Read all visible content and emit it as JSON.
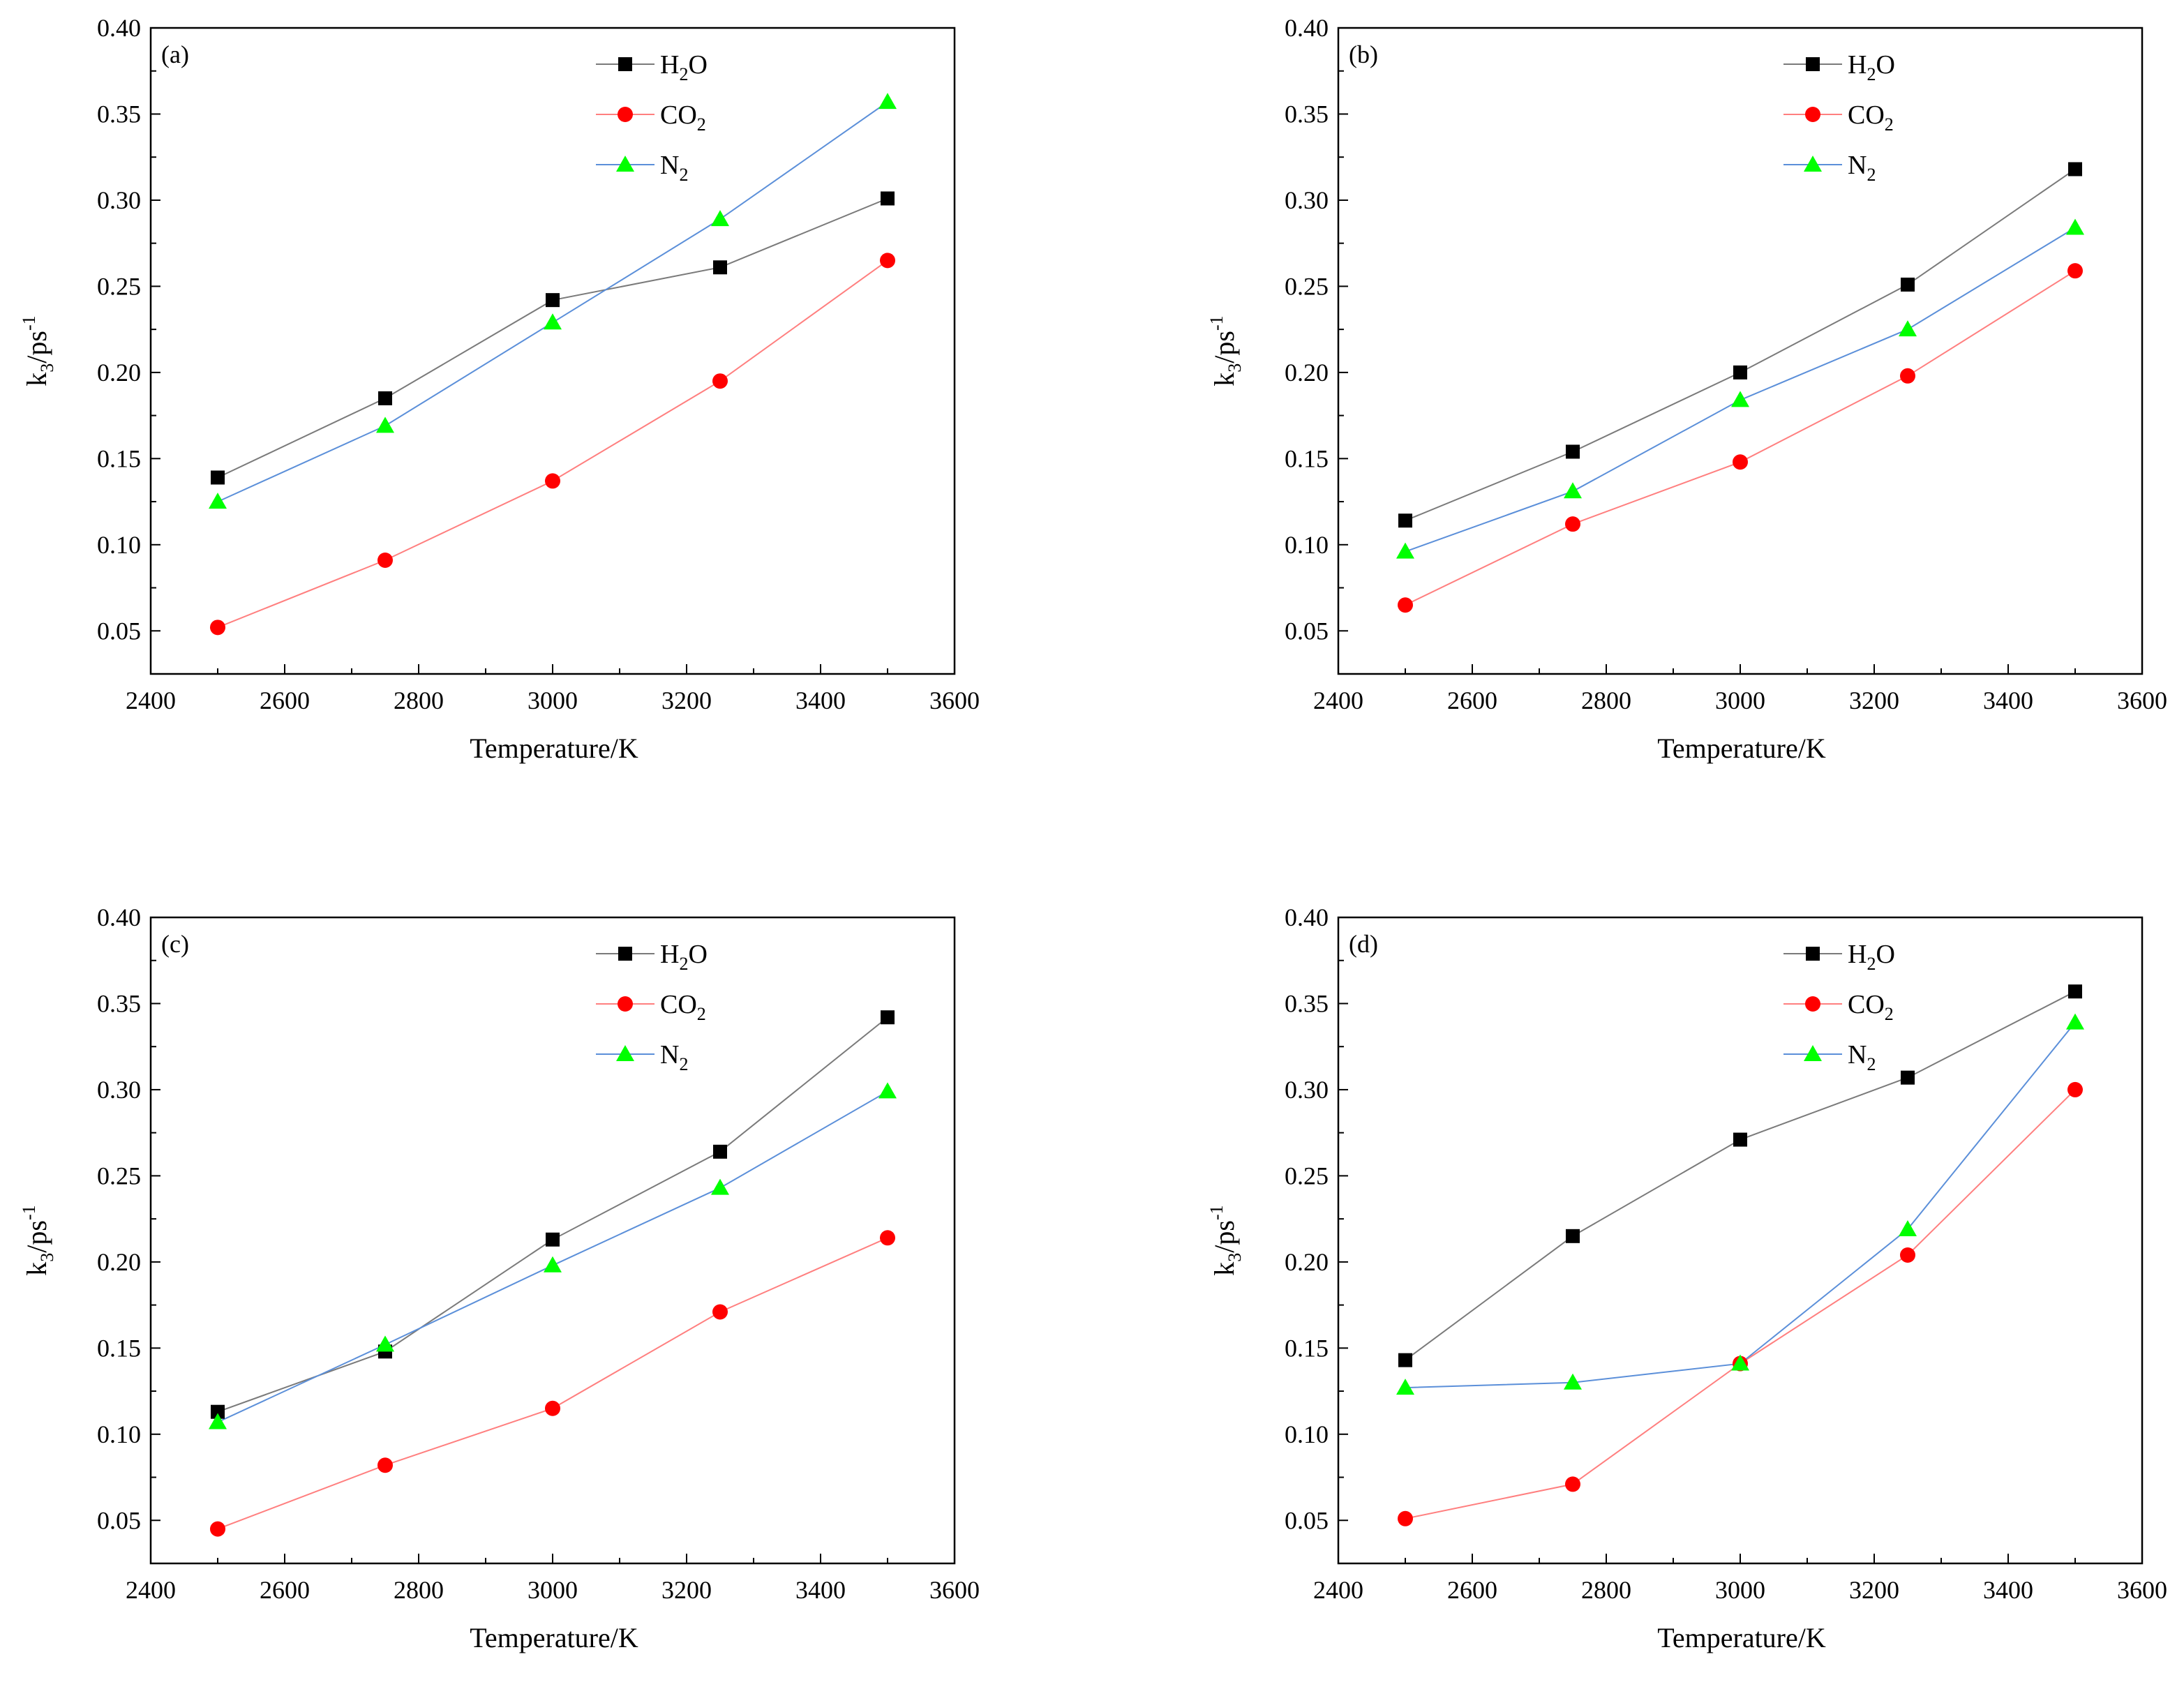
{
  "colors": {
    "h2o": "#000000",
    "h2o_line": "#7a7a7a",
    "co2": "#ff0000",
    "co2_line": "#ff7f7f",
    "n2": "#00ff00",
    "n2_line": "#5b8fd9"
  },
  "legend": [
    {
      "key": "h2o",
      "base": "H",
      "sub": "2",
      "tail": "O",
      "marker": "square"
    },
    {
      "key": "co2",
      "base": "CO",
      "sub": "2",
      "tail": "",
      "marker": "circle"
    },
    {
      "key": "n2",
      "base": "N",
      "sub": "2",
      "tail": "",
      "marker": "triangle"
    }
  ],
  "chart_data": [
    {
      "panel": "(a)",
      "type": "line",
      "x": [
        2500,
        2750,
        3000,
        3250,
        3500
      ],
      "xlabel": "Temperature/K",
      "ylabel": {
        "base": "k",
        "sub": "3",
        "mid": "/ps",
        "sup": "-1"
      },
      "xlim": [
        2400,
        3600
      ],
      "ylim": [
        0.025,
        0.4
      ],
      "xticks": [
        2400,
        2600,
        2800,
        3000,
        3200,
        3400,
        3600
      ],
      "xtick_labels": [
        "2400",
        "2600",
        "2800",
        "3000",
        "3200",
        "3400",
        "3600"
      ],
      "yticks": [
        0.05,
        0.1,
        0.15,
        0.2,
        0.25,
        0.3,
        0.35,
        0.4
      ],
      "ytick_labels": [
        "0.05",
        "0.10",
        "0.15",
        "0.20",
        "0.25",
        "0.30",
        "0.35",
        "0.40"
      ],
      "legend_position": "top-center",
      "series": [
        {
          "name": "H2O",
          "key": "h2o",
          "values": [
            0.139,
            0.185,
            0.242,
            0.261,
            0.301
          ]
        },
        {
          "name": "CO2",
          "key": "co2",
          "values": [
            0.052,
            0.091,
            0.137,
            0.195,
            0.265
          ]
        },
        {
          "name": "N2",
          "key": "n2",
          "values": [
            0.125,
            0.169,
            0.229,
            0.289,
            0.357
          ]
        }
      ]
    },
    {
      "panel": "(b)",
      "type": "line",
      "x": [
        2500,
        2750,
        3000,
        3250,
        3500
      ],
      "xlabel": "Temperature/K",
      "ylabel": {
        "base": "k",
        "sub": "3",
        "mid": "/ps",
        "sup": "-1"
      },
      "xlim": [
        2400,
        3600
      ],
      "ylim": [
        0.025,
        0.4
      ],
      "xticks": [
        2400,
        2600,
        2800,
        3000,
        3200,
        3400,
        3600
      ],
      "xtick_labels": [
        "2400",
        "2600",
        "2800",
        "3000",
        "3200",
        "3400",
        "3600"
      ],
      "yticks": [
        0.05,
        0.1,
        0.15,
        0.2,
        0.25,
        0.3,
        0.35,
        0.4
      ],
      "ytick_labels": [
        "0.05",
        "0.10",
        "0.15",
        "0.20",
        "0.25",
        "0.30",
        "0.35",
        "0.40"
      ],
      "legend_position": "top-center",
      "series": [
        {
          "name": "H2O",
          "key": "h2o",
          "values": [
            0.114,
            0.154,
            0.2,
            0.251,
            0.318
          ]
        },
        {
          "name": "CO2",
          "key": "co2",
          "values": [
            0.065,
            0.112,
            0.148,
            0.198,
            0.259
          ]
        },
        {
          "name": "N2",
          "key": "n2",
          "values": [
            0.096,
            0.131,
            0.184,
            0.225,
            0.284
          ]
        }
      ]
    },
    {
      "panel": "(c)",
      "type": "line",
      "x": [
        2500,
        2750,
        3000,
        3250,
        3500
      ],
      "xlabel": "Temperature/K",
      "ylabel": {
        "base": "k",
        "sub": "3",
        "mid": "/ps",
        "sup": "-1"
      },
      "xlim": [
        2400,
        3600
      ],
      "ylim": [
        0.025,
        0.4
      ],
      "xticks": [
        2400,
        2600,
        2800,
        3000,
        3200,
        3400,
        3600
      ],
      "xtick_labels": [
        "2400",
        "2600",
        "2800",
        "3000",
        "3200",
        "3400",
        "3600"
      ],
      "yticks": [
        0.05,
        0.1,
        0.15,
        0.2,
        0.25,
        0.3,
        0.35,
        0.4
      ],
      "ytick_labels": [
        "0.05",
        "0.10",
        "0.15",
        "0.20",
        "0.25",
        "0.30",
        "0.35",
        "0.40"
      ],
      "legend_position": "top-center",
      "series": [
        {
          "name": "H2O",
          "key": "h2o",
          "values": [
            0.113,
            0.148,
            0.213,
            0.264,
            0.342
          ]
        },
        {
          "name": "CO2",
          "key": "co2",
          "values": [
            0.045,
            0.082,
            0.115,
            0.171,
            0.214
          ]
        },
        {
          "name": "N2",
          "key": "n2",
          "values": [
            0.107,
            0.152,
            0.198,
            0.243,
            0.299
          ]
        }
      ]
    },
    {
      "panel": "(d)",
      "type": "line",
      "x": [
        2500,
        2750,
        3000,
        3250,
        3500
      ],
      "xlabel": "Temperature/K",
      "ylabel": {
        "base": "k",
        "sub": "3",
        "mid": "/ps",
        "sup": "-1"
      },
      "xlim": [
        2400,
        3600
      ],
      "ylim": [
        0.025,
        0.4
      ],
      "xticks": [
        2400,
        2600,
        2800,
        3000,
        3200,
        3400,
        3600
      ],
      "xtick_labels": [
        "2400",
        "2600",
        "2800",
        "3000",
        "3200",
        "3400",
        "3600"
      ],
      "yticks": [
        0.05,
        0.1,
        0.15,
        0.2,
        0.25,
        0.3,
        0.35,
        0.4
      ],
      "ytick_labels": [
        "0.05",
        "0.10",
        "0.15",
        "0.20",
        "0.25",
        "0.30",
        "0.35",
        "0.40"
      ],
      "legend_position": "top-center",
      "series": [
        {
          "name": "H2O",
          "key": "h2o",
          "values": [
            0.143,
            0.215,
            0.271,
            0.307,
            0.357
          ]
        },
        {
          "name": "CO2",
          "key": "co2",
          "values": [
            0.051,
            0.071,
            0.141,
            0.204,
            0.3
          ]
        },
        {
          "name": "N2",
          "key": "n2",
          "values": [
            0.127,
            0.13,
            0.141,
            0.219,
            0.339
          ]
        }
      ]
    }
  ]
}
